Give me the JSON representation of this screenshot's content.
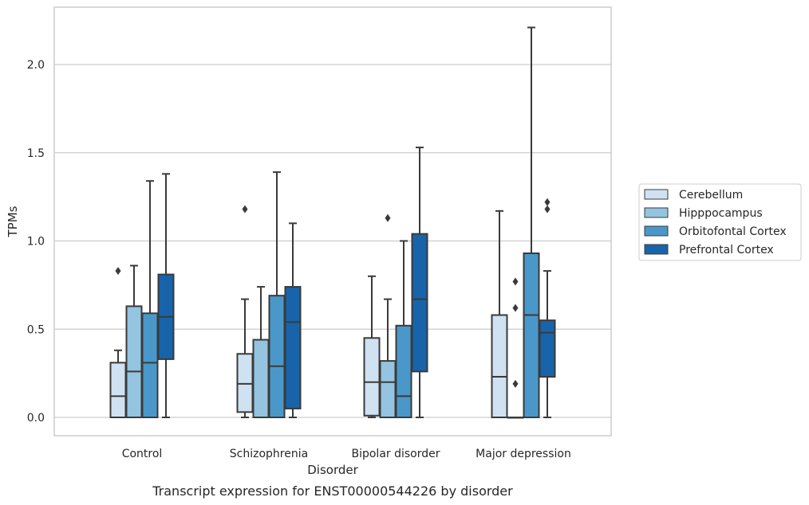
{
  "chart_data": {
    "type": "box",
    "title": "",
    "caption": "Transcript expression for ENST00000544226 by disorder",
    "xlabel": "Disorder",
    "ylabel": "TPMs",
    "ylim": [
      -0.11,
      2.35
    ],
    "yticks": [
      "0.0",
      "0.5",
      "1.0",
      "1.5",
      "2.0"
    ],
    "ytick_values": [
      0,
      0.5,
      1.0,
      1.5,
      2.0
    ],
    "grid": "horizontal",
    "legend_position": "right",
    "categories": [
      "Control",
      "Schizophrenia",
      "Bipolar disorder",
      "Major depression"
    ],
    "series": [
      {
        "name": "Cerebellum",
        "color": "#d0e1f2",
        "boxes": [
          {
            "min": 0.0,
            "q1": 0.0,
            "median": 0.12,
            "q3": 0.31,
            "max": 0.38,
            "outliers": [
              0.83
            ]
          },
          {
            "min": 0.0,
            "q1": 0.03,
            "median": 0.19,
            "q3": 0.36,
            "max": 0.67,
            "outliers": [
              1.18
            ]
          },
          {
            "min": 0.0,
            "q1": 0.01,
            "median": 0.2,
            "q3": 0.45,
            "max": 0.8,
            "outliers": []
          },
          {
            "min": 0.0,
            "q1": 0.0,
            "median": 0.23,
            "q3": 0.58,
            "max": 1.17,
            "outliers": []
          }
        ]
      },
      {
        "name": "Hipppocampus",
        "color": "#94c4df",
        "boxes": [
          {
            "min": 0.0,
            "q1": 0.0,
            "median": 0.26,
            "q3": 0.63,
            "max": 0.86,
            "outliers": []
          },
          {
            "min": 0.0,
            "q1": 0.0,
            "median": 0.0,
            "q3": 0.44,
            "max": 0.74,
            "outliers": []
          },
          {
            "min": 0.0,
            "q1": 0.0,
            "median": 0.2,
            "q3": 0.32,
            "max": 0.67,
            "outliers": [
              1.13
            ]
          },
          {
            "min": 0.0,
            "q1": 0.0,
            "median": 0.0,
            "q3": 0.0,
            "max": 0.0,
            "outliers": [
              0.19,
              0.62,
              0.77
            ]
          }
        ]
      },
      {
        "name": "Orbitofontal Cortex",
        "color": "#4a98c9",
        "boxes": [
          {
            "min": 0.0,
            "q1": 0.0,
            "median": 0.31,
            "q3": 0.59,
            "max": 1.34,
            "outliers": []
          },
          {
            "min": 0.0,
            "q1": 0.0,
            "median": 0.29,
            "q3": 0.69,
            "max": 1.39,
            "outliers": []
          },
          {
            "min": 0.0,
            "q1": 0.0,
            "median": 0.12,
            "q3": 0.52,
            "max": 1.0,
            "outliers": []
          },
          {
            "min": 0.0,
            "q1": 0.0,
            "median": 0.58,
            "q3": 0.93,
            "max": 2.21,
            "outliers": []
          }
        ]
      },
      {
        "name": "Prefrontal Cortex",
        "color": "#1764ab",
        "boxes": [
          {
            "min": 0.0,
            "q1": 0.33,
            "median": 0.57,
            "q3": 0.81,
            "max": 1.38,
            "outliers": []
          },
          {
            "min": 0.0,
            "q1": 0.05,
            "median": 0.54,
            "q3": 0.74,
            "max": 1.1,
            "outliers": []
          },
          {
            "min": 0.0,
            "q1": 0.26,
            "median": 0.67,
            "q3": 1.04,
            "max": 1.53,
            "outliers": []
          },
          {
            "min": 0.0,
            "q1": 0.23,
            "median": 0.48,
            "q3": 0.55,
            "max": 0.83,
            "outliers": [
              1.18,
              1.22
            ]
          }
        ]
      }
    ]
  }
}
